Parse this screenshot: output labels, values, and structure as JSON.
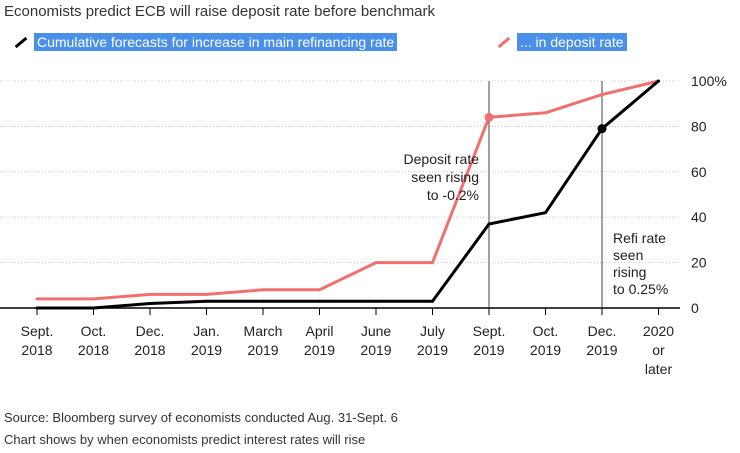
{
  "chart_data": {
    "type": "line",
    "title": "Economists predict ECB will raise deposit rate before benchmark",
    "categories": [
      [
        "Sept.",
        "2018"
      ],
      [
        "Oct.",
        "2018"
      ],
      [
        "Dec.",
        "2018"
      ],
      [
        "Jan.",
        "2019"
      ],
      [
        "March",
        "2019"
      ],
      [
        "April",
        "2019"
      ],
      [
        "June",
        "2019"
      ],
      [
        "July",
        "2019"
      ],
      [
        "Sept.",
        "2019"
      ],
      [
        "Oct.",
        "2019"
      ],
      [
        "Dec.",
        "2019"
      ],
      [
        "2020",
        "or",
        "later"
      ]
    ],
    "series": [
      {
        "name": "Cumulative forecasts for increase in main refinancing rate",
        "color": "#000000",
        "values": [
          0,
          0,
          2,
          3,
          3,
          3,
          3,
          3,
          37,
          42,
          79,
          100
        ]
      },
      {
        "name": "... in deposit rate",
        "color": "#f07070",
        "values": [
          4,
          4,
          6,
          6,
          8,
          8,
          20,
          20,
          84,
          86,
          94,
          100
        ]
      }
    ],
    "ylim": [
      0,
      100
    ],
    "yticks": [
      0,
      20,
      40,
      60,
      80,
      100
    ],
    "ytick_labels": [
      "0",
      "20",
      "40",
      "60",
      "80",
      "100%"
    ],
    "annotations": [
      {
        "category_index": 8,
        "series": 1,
        "lines": [
          "Deposit rate",
          "seen rising",
          "to -0.2%"
        ]
      },
      {
        "category_index": 10,
        "series": 0,
        "lines": [
          "Refi rate",
          "seen",
          "rising",
          "to 0.25%"
        ]
      }
    ],
    "grid": true
  },
  "source": "Source: Bloomberg survey of economists conducted Aug. 31-Sept. 6",
  "note": "Chart shows by when economists predict interest rates will rise"
}
